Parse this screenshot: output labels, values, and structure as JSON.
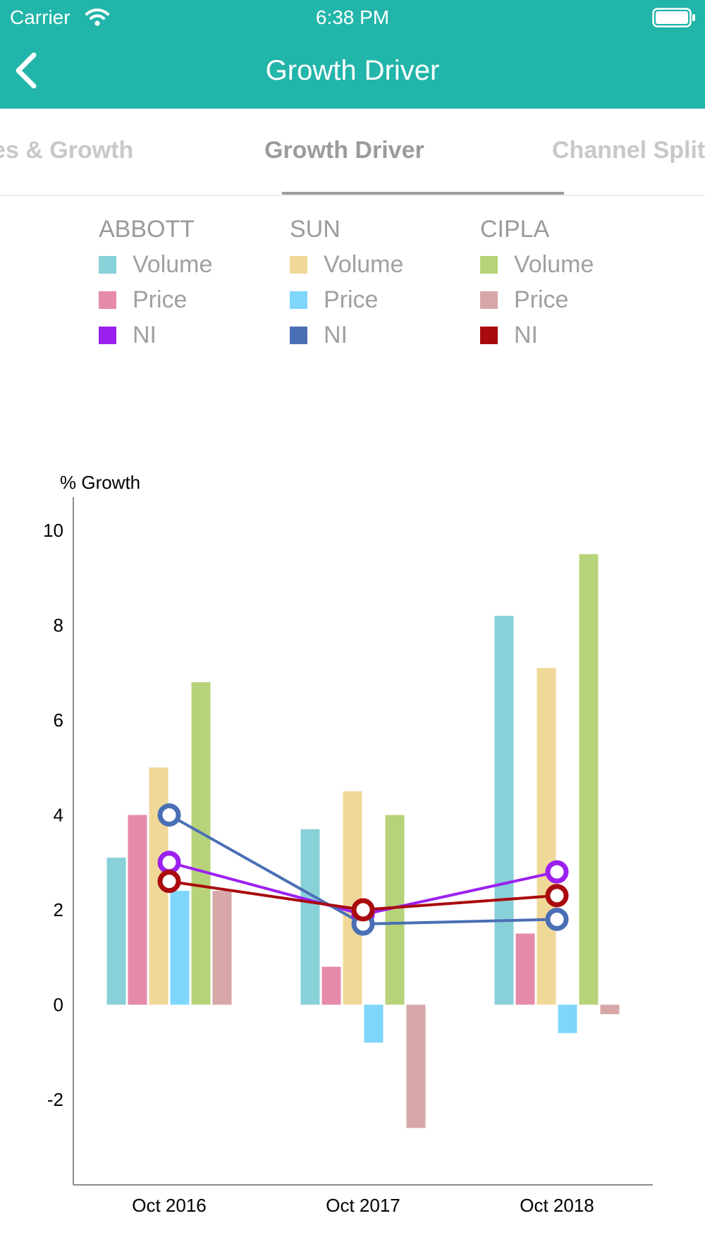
{
  "status_bar": {
    "carrier": "Carrier",
    "time": "6:38 PM"
  },
  "nav": {
    "title": "Growth Driver",
    "back_icon": "chevron-left-icon"
  },
  "tabs": [
    {
      "label": "Sales & Growth",
      "active": false
    },
    {
      "label": "Growth Driver",
      "active": true
    },
    {
      "label": "Channel Split",
      "active": false
    }
  ],
  "legend": {
    "groups": [
      {
        "title": "ABBOTT",
        "items": [
          {
            "label": "Volume",
            "color": "#88d1d8"
          },
          {
            "label": "Price",
            "color": "#e58aab"
          },
          {
            "label": "NI",
            "color": "#9b21f0"
          }
        ]
      },
      {
        "title": "SUN",
        "items": [
          {
            "label": "Volume",
            "color": "#f0d898"
          },
          {
            "label": "Price",
            "color": "#7fd6fb"
          },
          {
            "label": "NI",
            "color": "#4a6fb5"
          }
        ]
      },
      {
        "title": "CIPLA",
        "items": [
          {
            "label": "Volume",
            "color": "#b7d37a"
          },
          {
            "label": "Price",
            "color": "#d7a7a8"
          },
          {
            "label": "NI",
            "color": "#a90a0e"
          }
        ]
      }
    ]
  },
  "chart_data": {
    "type": "bar",
    "ylabel": "% Growth",
    "ylim": [
      -3.8,
      10.7
    ],
    "yticks": [
      -2,
      0,
      2,
      4,
      6,
      8,
      10
    ],
    "categories": [
      "Oct 2016",
      "Oct 2017",
      "Oct 2018"
    ],
    "bar_series": [
      {
        "name": "ABBOTT Volume",
        "color": "#88d1d8",
        "values": [
          3.1,
          3.7,
          8.2
        ]
      },
      {
        "name": "ABBOTT Price",
        "color": "#e58aab",
        "values": [
          4.0,
          0.8,
          1.5
        ]
      },
      {
        "name": "SUN Volume",
        "color": "#f0d898",
        "values": [
          5.0,
          4.5,
          7.1
        ]
      },
      {
        "name": "SUN Price",
        "color": "#7fd6fb",
        "values": [
          2.4,
          -0.8,
          -0.6
        ]
      },
      {
        "name": "CIPLA Volume",
        "color": "#b7d37a",
        "values": [
          6.8,
          4.0,
          9.5
        ]
      },
      {
        "name": "CIPLA Price",
        "color": "#d7a7a8",
        "values": [
          2.4,
          -2.6,
          -0.2
        ]
      }
    ],
    "line_series": [
      {
        "name": "ABBOTT NI",
        "color": "#9b21f0",
        "values": [
          3.0,
          1.9,
          2.8
        ]
      },
      {
        "name": "SUN NI",
        "color": "#4a6fb5",
        "values": [
          4.0,
          1.7,
          1.8
        ]
      },
      {
        "name": "CIPLA NI",
        "color": "#a90a0e",
        "values": [
          2.6,
          2.0,
          2.3
        ]
      }
    ]
  }
}
